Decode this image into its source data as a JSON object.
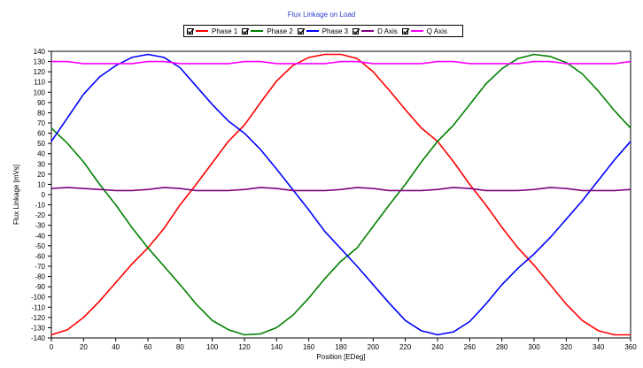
{
  "chart_data": {
    "type": "line",
    "title": "Flux Linkage on Load",
    "xlabel": "Position [EDeg]",
    "ylabel": "Flux Linkage [mVs]",
    "xlim": [
      0,
      360
    ],
    "ylim": [
      -140,
      140
    ],
    "x_ticks": [
      0,
      20,
      40,
      60,
      80,
      100,
      120,
      140,
      160,
      180,
      200,
      220,
      240,
      260,
      280,
      300,
      320,
      340,
      360
    ],
    "y_ticks": [
      140,
      130,
      120,
      110,
      100,
      90,
      80,
      70,
      60,
      50,
      40,
      30,
      20,
      10,
      0,
      -10,
      -20,
      -30,
      -40,
      -50,
      -60,
      -70,
      -80,
      -90,
      -100,
      -110,
      -120,
      -130,
      -140
    ],
    "grid": false,
    "legend_position": "top-center",
    "x": [
      0,
      10,
      20,
      30,
      40,
      50,
      60,
      70,
      80,
      90,
      100,
      110,
      120,
      130,
      140,
      150,
      160,
      170,
      180,
      190,
      200,
      210,
      220,
      230,
      240,
      250,
      260,
      270,
      280,
      290,
      300,
      310,
      320,
      330,
      340,
      350,
      360
    ],
    "series": [
      {
        "name": "Phase 1",
        "color": "#ff0000",
        "values": [
          -137,
          -132,
          -120,
          -104,
          -86,
          -68,
          -52,
          -33,
          -10,
          10,
          31,
          52,
          68,
          90,
          111,
          126,
          134,
          137,
          137,
          133,
          120,
          102,
          83,
          65,
          52,
          32,
          10,
          -10,
          -32,
          -52,
          -69,
          -88,
          -107,
          -123,
          -133,
          -137,
          -137
        ]
      },
      {
        "name": "Phase 2",
        "color": "#008000",
        "values": [
          65,
          50,
          32,
          10,
          -10,
          -32,
          -52,
          -70,
          -88,
          -107,
          -123,
          -132,
          -137,
          -136,
          -130,
          -118,
          -101,
          -82,
          -65,
          -52,
          -31,
          -10,
          10,
          32,
          52,
          68,
          88,
          108,
          123,
          133,
          137,
          135,
          129,
          118,
          101,
          82,
          65
        ]
      },
      {
        "name": "Phase 3",
        "color": "#0000ff",
        "values": [
          52,
          75,
          98,
          115,
          126,
          134,
          137,
          134,
          124,
          106,
          88,
          72,
          60,
          44,
          25,
          5,
          -15,
          -36,
          -53,
          -70,
          -88,
          -106,
          -123,
          -133,
          -137,
          -134,
          -124,
          -107,
          -88,
          -72,
          -58,
          -42,
          -24,
          -6,
          14,
          34,
          52
        ]
      },
      {
        "name": "D Axis",
        "color": "#800080",
        "values": [
          6,
          7,
          6,
          5,
          4,
          4,
          5,
          7,
          6,
          4,
          4,
          4,
          5,
          7,
          6,
          4,
          4,
          4,
          5,
          7,
          6,
          4,
          4,
          4,
          5,
          7,
          6,
          4,
          4,
          4,
          5,
          7,
          6,
          4,
          4,
          4,
          5
        ]
      },
      {
        "name": "Q Axis",
        "color": "#ff00ff",
        "values": [
          130,
          130,
          128,
          128,
          128,
          128,
          130,
          130,
          128,
          128,
          128,
          128,
          130,
          130,
          128,
          128,
          128,
          128,
          130,
          130,
          128,
          128,
          128,
          128,
          130,
          130,
          128,
          128,
          128,
          128,
          130,
          130,
          128,
          128,
          128,
          128,
          130
        ]
      }
    ]
  }
}
